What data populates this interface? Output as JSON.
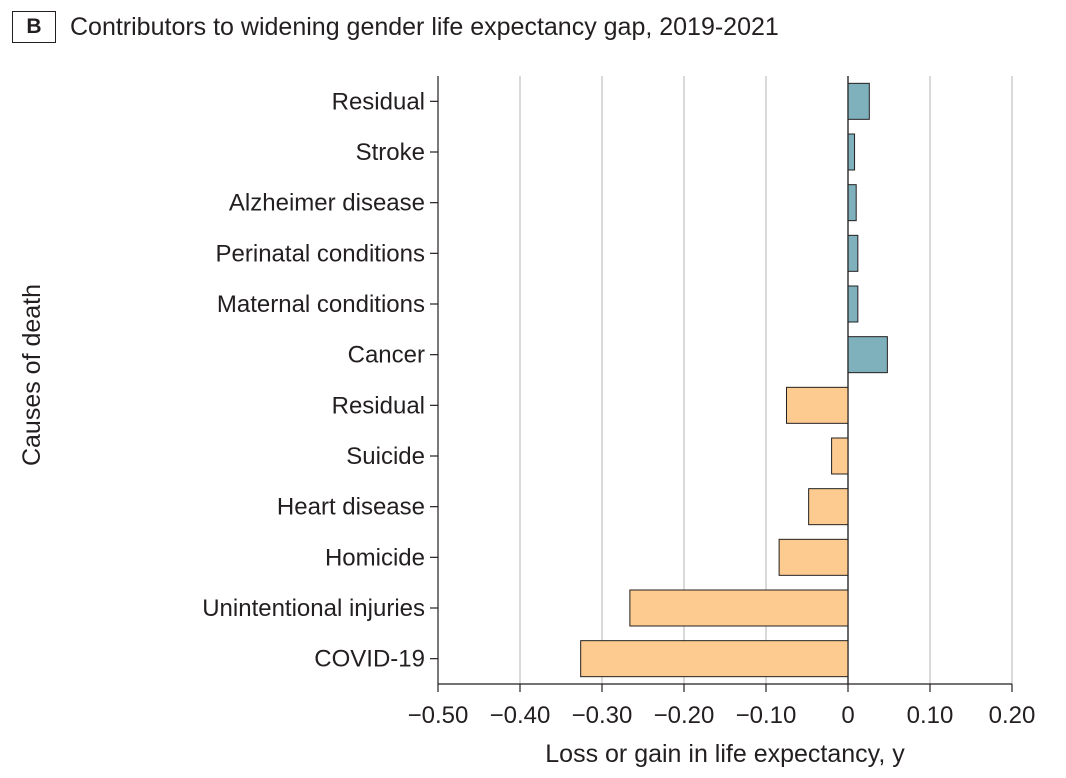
{
  "panel_label": "B",
  "chart_data": {
    "type": "bar",
    "orientation": "horizontal",
    "title": "Contributors to widening gender life expectancy gap, 2019-2021",
    "xlabel": "Loss or gain in life expectancy, y",
    "ylabel": "Causes of death",
    "xlim": [
      -0.5,
      0.2
    ],
    "xticks": [
      -0.5,
      -0.4,
      -0.3,
      -0.2,
      -0.1,
      0,
      0.1,
      0.2
    ],
    "xtick_labels": [
      "−0.50",
      "−0.40",
      "−0.30",
      "−0.20",
      "−0.10",
      "0",
      "0.10",
      "0.20"
    ],
    "grid": true,
    "categories": [
      "Residual",
      "Stroke",
      "Alzheimer disease",
      "Perinatal conditions",
      "Maternal conditions",
      "Cancer",
      "Residual",
      "Suicide",
      "Heart disease",
      "Homicide",
      "Unintentional injuries",
      "COVID-19"
    ],
    "values": [
      0.026,
      0.008,
      0.01,
      0.012,
      0.012,
      0.048,
      -0.075,
      -0.02,
      -0.048,
      -0.084,
      -0.266,
      -0.326
    ],
    "colors": [
      "#7fb1bd",
      "#7fb1bd",
      "#7fb1bd",
      "#7fb1bd",
      "#7fb1bd",
      "#7fb1bd",
      "#fdcb8f",
      "#fdcb8f",
      "#fdcb8f",
      "#fdcb8f",
      "#fdcb8f",
      "#fdcb8f"
    ]
  }
}
